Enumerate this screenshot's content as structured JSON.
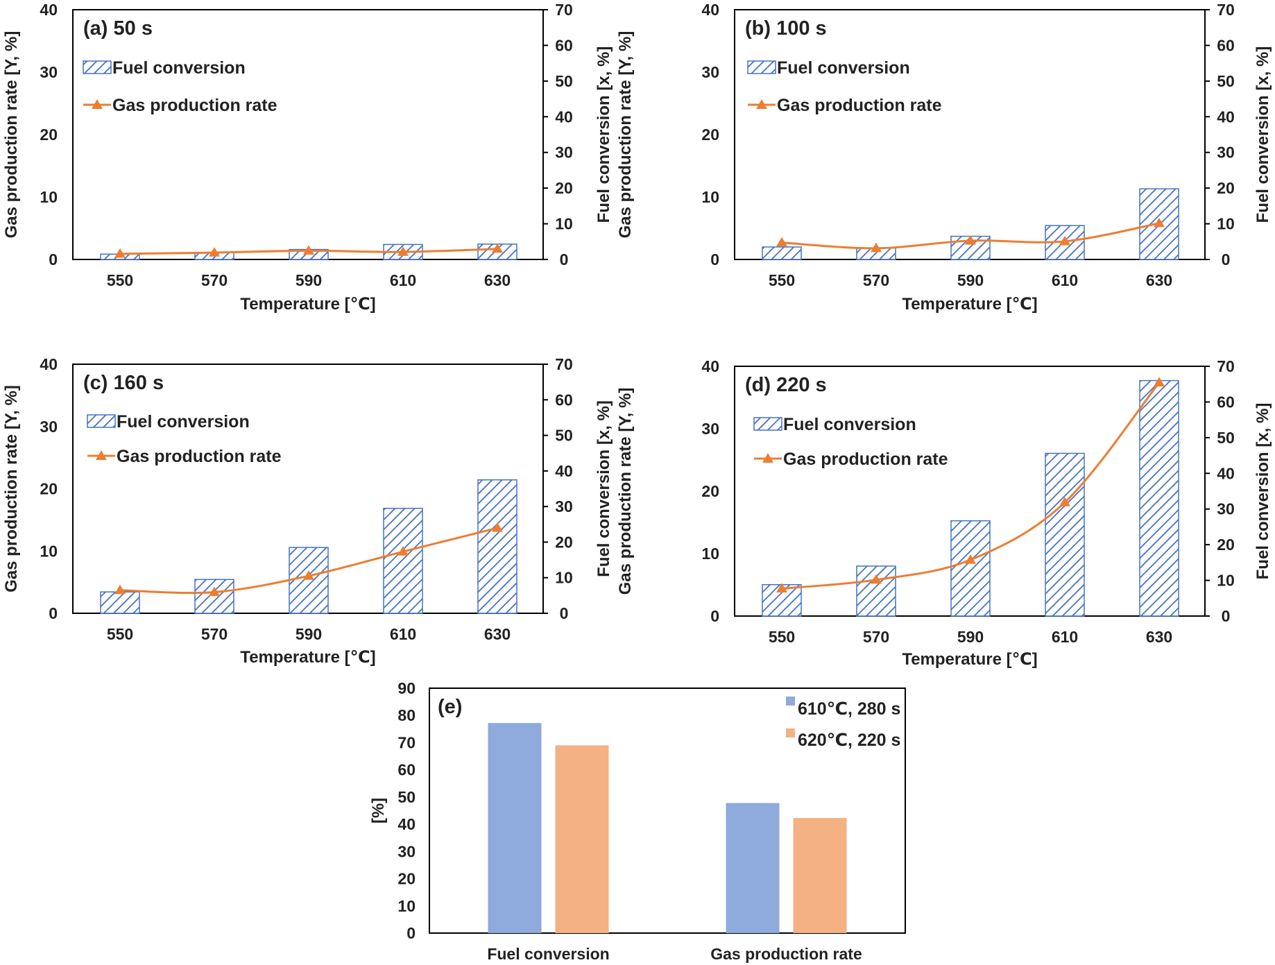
{
  "colors": {
    "bar_hatch": "#4472C4",
    "line": "#ED7D31",
    "series_blue": "#8FAADC",
    "series_orange": "#F4B183",
    "axis": "#000000",
    "text": "#222222"
  },
  "chart_data": [
    {
      "type": "bar+line",
      "panel": "(a) 50 s",
      "xlabel": "Temperature [℃]",
      "ylabel_left": "Gas production rate [Y, %]",
      "ylabel_right": "Fuel conversion [x, %]",
      "categories": [
        "550",
        "570",
        "590",
        "610",
        "630"
      ],
      "left_ticks": [
        "0",
        "10",
        "20",
        "30",
        "40"
      ],
      "right_ticks": [
        "0",
        "10",
        "20",
        "30",
        "40",
        "50",
        "60",
        "70"
      ],
      "ylim_left": [
        0,
        40
      ],
      "ylim_right": [
        0,
        70
      ],
      "series": [
        {
          "name": "Fuel conversion",
          "kind": "bar-hatched",
          "axis": "right",
          "values": [
            1.5,
            2.0,
            2.8,
            4.2,
            4.3
          ]
        },
        {
          "name": "Gas production rate",
          "kind": "line-triangle",
          "axis": "left",
          "values": [
            0.9,
            1.1,
            1.4,
            1.2,
            1.7
          ]
        }
      ]
    },
    {
      "type": "bar+line",
      "panel": "(b) 100 s",
      "xlabel": "Temperature [℃]",
      "ylabel_left": "Gas production rate [Y, %]",
      "ylabel_right": "Fuel conversion [x, %]",
      "categories": [
        "550",
        "570",
        "590",
        "610",
        "630"
      ],
      "left_ticks": [
        "0",
        "10",
        "20",
        "30",
        "40"
      ],
      "right_ticks": [
        "0",
        "10",
        "20",
        "30",
        "40",
        "50",
        "60",
        "70"
      ],
      "ylim_left": [
        0,
        40
      ],
      "ylim_right": [
        0,
        70
      ],
      "series": [
        {
          "name": "Fuel conversion",
          "kind": "bar-hatched",
          "axis": "right",
          "values": [
            3.5,
            3.2,
            6.5,
            9.5,
            19.8
          ]
        },
        {
          "name": "Gas production rate",
          "kind": "line-triangle",
          "axis": "left",
          "values": [
            2.7,
            1.8,
            3.0,
            2.9,
            5.8
          ]
        }
      ]
    },
    {
      "type": "bar+line",
      "panel": "(c) 160 s",
      "xlabel": "Temperature [℃]",
      "ylabel_left": "Gas production rate [Y, %]",
      "ylabel_right": "Fuel conversion [x, %]",
      "categories": [
        "550",
        "570",
        "590",
        "610",
        "630"
      ],
      "left_ticks": [
        "0",
        "10",
        "20",
        "30",
        "40"
      ],
      "right_ticks": [
        "0",
        "10",
        "20",
        "30",
        "40",
        "50",
        "60",
        "70"
      ],
      "ylim_left": [
        0,
        40
      ],
      "ylim_right": [
        0,
        70
      ],
      "series": [
        {
          "name": "Fuel conversion",
          "kind": "bar-hatched",
          "axis": "right",
          "values": [
            6.0,
            9.5,
            18.5,
            29.5,
            37.5
          ]
        },
        {
          "name": "Gas production rate",
          "kind": "line-triangle",
          "axis": "left",
          "values": [
            3.7,
            3.4,
            6.0,
            9.9,
            13.7
          ]
        }
      ]
    },
    {
      "type": "bar+line",
      "panel": "(d) 220 s",
      "xlabel": "Temperature [℃]",
      "ylabel_left": "Gas production rate [Y, %]",
      "ylabel_right": "Fuel conversion [x, %]",
      "categories": [
        "550",
        "570",
        "590",
        "610",
        "630"
      ],
      "left_ticks": [
        "0",
        "10",
        "20",
        "30",
        "40"
      ],
      "right_ticks": [
        "0",
        "10",
        "20",
        "30",
        "40",
        "50",
        "60",
        "70"
      ],
      "ylim_left": [
        0,
        40
      ],
      "ylim_right": [
        0,
        70
      ],
      "series": [
        {
          "name": "Fuel conversion",
          "kind": "bar-hatched",
          "axis": "right",
          "values": [
            8.8,
            14.0,
            26.7,
            45.6,
            66.0
          ]
        },
        {
          "name": "Gas production rate",
          "kind": "line-triangle",
          "axis": "left",
          "values": [
            4.4,
            5.8,
            9.0,
            18.2,
            37.4
          ]
        }
      ]
    },
    {
      "type": "bar",
      "panel": "(e)",
      "xlabel": "",
      "ylabel": "[%]",
      "categories": [
        "Fuel conversion",
        "Gas production rate"
      ],
      "ticks": [
        "0",
        "10",
        "20",
        "30",
        "40",
        "50",
        "60",
        "70",
        "80",
        "90"
      ],
      "ylim": [
        0,
        90
      ],
      "series": [
        {
          "name": "610℃, 280 s",
          "values": [
            77.2,
            47.8
          ]
        },
        {
          "name": "620℃, 220 s",
          "values": [
            69.0,
            42.3
          ]
        }
      ]
    }
  ]
}
